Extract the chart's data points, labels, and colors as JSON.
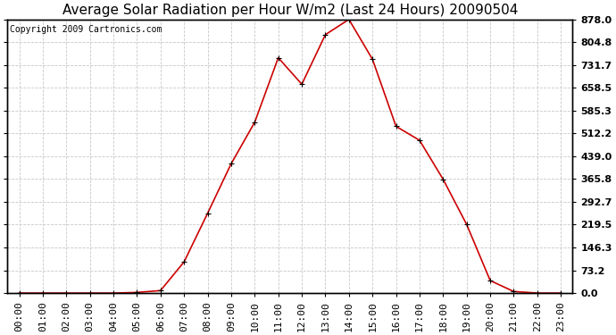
{
  "title": "Average Solar Radiation per Hour W/m2 (Last 24 Hours) 20090504",
  "copyright": "Copyright 2009 Cartronics.com",
  "hours": [
    "00:00",
    "01:00",
    "02:00",
    "03:00",
    "04:00",
    "05:00",
    "06:00",
    "07:00",
    "08:00",
    "09:00",
    "10:00",
    "11:00",
    "12:00",
    "13:00",
    "14:00",
    "15:00",
    "16:00",
    "17:00",
    "18:00",
    "19:00",
    "20:00",
    "21:00",
    "22:00",
    "23:00"
  ],
  "values": [
    0,
    0,
    0,
    0,
    0,
    2,
    8,
    100,
    256,
    415,
    548,
    755,
    670,
    829,
    878,
    750,
    535,
    490,
    365,
    220,
    40,
    5,
    0,
    0
  ],
  "line_color": "#CC0000",
  "marker": "+",
  "background_color": "#ffffff",
  "grid_color": "#c8c8c8",
  "yticks": [
    0.0,
    73.2,
    146.3,
    219.5,
    292.7,
    365.8,
    439.0,
    512.2,
    585.3,
    658.5,
    731.7,
    804.8,
    878.0
  ],
  "ymax": 878.0,
  "ymin": 0.0,
  "title_fontsize": 11,
  "copyright_fontsize": 7,
  "tick_fontsize": 8
}
